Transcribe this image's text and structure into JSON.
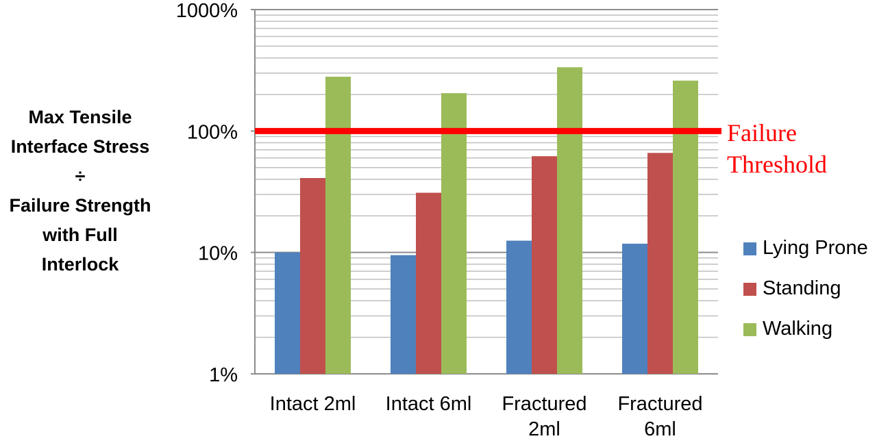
{
  "chart_data": {
    "type": "bar",
    "ylabel_lines": [
      "Max Tensile",
      "Interface Stress",
      "÷",
      "Failure Strength",
      "with Full",
      "Interlock"
    ],
    "yscale": "log",
    "ylim": [
      1,
      1000
    ],
    "yticks": [
      {
        "value": 1,
        "label": "1%"
      },
      {
        "value": 10,
        "label": "10%"
      },
      {
        "value": 100,
        "label": "100%"
      },
      {
        "value": 1000,
        "label": "1000%"
      }
    ],
    "grid": true,
    "categories": [
      {
        "lines": [
          "Intact 2ml"
        ]
      },
      {
        "lines": [
          "Intact 6ml"
        ]
      },
      {
        "lines": [
          "Fractured",
          "2ml"
        ]
      },
      {
        "lines": [
          "Fractured",
          "6ml"
        ]
      }
    ],
    "series": [
      {
        "name": "Lying Prone",
        "color": "#4f81bd",
        "values": [
          10,
          9.5,
          12.5,
          11.8
        ]
      },
      {
        "name": "Standing",
        "color": "#c0504d",
        "values": [
          41,
          31,
          62,
          66
        ]
      },
      {
        "name": "Walking",
        "color": "#9bbb59",
        "values": [
          280,
          205,
          335,
          260
        ]
      }
    ],
    "legend_position": "right",
    "threshold": {
      "value": 100,
      "color": "#ff0000",
      "label_lines": [
        "Failure",
        "Threshold"
      ]
    }
  }
}
